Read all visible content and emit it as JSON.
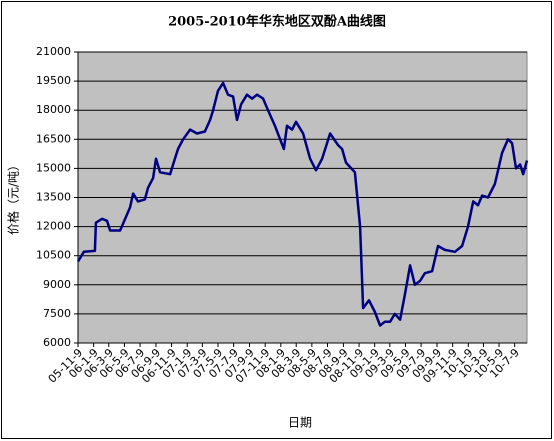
{
  "chart_data": {
    "type": "line",
    "title": "2005-2010年华东地区双酚A曲线图",
    "x_label": "日期",
    "y_label": "价格（元/吨）",
    "x": [
      "05-11-9",
      "05-12-2",
      "06-1-14",
      "06-1-18",
      "06-2-11",
      "06-3-2",
      "06-3-14",
      "06-4-22",
      "06-5-15",
      "06-5-31",
      "06-6-12",
      "06-7-1",
      "06-7-28",
      "06-8-9",
      "06-8-29",
      "06-9-9",
      "06-9-25",
      "06-11-3",
      "06-11-15",
      "06-12-4",
      "06-12-24",
      "07-1-20",
      "07-2-16",
      "07-3-19",
      "07-4-8",
      "07-4-20",
      "07-5-9",
      "07-5-29",
      "07-6-17",
      "07-7-7",
      "07-7-22",
      "07-8-7",
      "07-8-30",
      "07-9-19",
      "07-10-8",
      "07-11-1",
      "07-11-20",
      "07-12-17",
      "08-1-6",
      "08-1-21",
      "08-2-2",
      "08-2-22",
      "08-3-8",
      "08-4-5",
      "08-5-2",
      "08-5-25",
      "08-6-18",
      "08-7-19",
      "08-8-19",
      "08-9-4",
      "08-9-19",
      "08-10-24",
      "08-11-13",
      "08-11-25",
      "08-12-18",
      "09-1-10",
      "09-1-30",
      "09-2-18",
      "09-3-10",
      "09-3-29",
      "09-4-18",
      "09-5-7",
      "09-5-27",
      "09-6-15",
      "09-7-5",
      "09-7-24",
      "09-8-21",
      "09-9-13",
      "09-10-10",
      "09-11-18",
      "09-12-16",
      "10-1-8",
      "10-1-28",
      "10-2-16",
      "10-3-4",
      "10-3-27",
      "10-4-23",
      "10-5-21",
      "10-6-13",
      "10-6-29",
      "10-7-14",
      "10-7-30",
      "10-8-11",
      "10-8-26"
    ],
    "series": [
      {
        "color": "#000080",
        "values": [
          10200,
          10700,
          10750,
          12200,
          12400,
          12300,
          11800,
          11800,
          12500,
          13000,
          13700,
          13300,
          13400,
          14000,
          14500,
          15500,
          14800,
          14700,
          15200,
          16000,
          16500,
          17000,
          16800,
          16900,
          17500,
          18000,
          19000,
          19400,
          18800,
          18700,
          17500,
          18300,
          18800,
          18600,
          18800,
          18600,
          18000,
          17200,
          16500,
          16000,
          17200,
          17000,
          17400,
          16800,
          15500,
          14900,
          15500,
          16800,
          16200,
          16000,
          15300,
          14800,
          12000,
          7800,
          8200,
          7600,
          6900,
          7100,
          7100,
          7500,
          7200,
          8500,
          10000,
          9000,
          9200,
          9600,
          9700,
          11000,
          10800,
          10700,
          11000,
          12000,
          13300,
          13100,
          13600,
          13500,
          14200,
          15800,
          16500,
          16300,
          15000,
          15200,
          14700,
          15400
        ]
      }
    ],
    "xlim": [
      "05-11-9",
      "10-8-26"
    ],
    "xticks": [
      "05-11-9",
      "06-1-9",
      "06-3-9",
      "06-5-9",
      "06-7-9",
      "06-9-9",
      "06-11-9",
      "07-1-9",
      "07-3-9",
      "07-5-9",
      "07-7-9",
      "07-9-9",
      "07-11-9",
      "08-1-9",
      "08-3-9",
      "08-5-9",
      "08-7-9",
      "08-9-9",
      "08-11-9",
      "09-1-9",
      "09-3-9",
      "09-5-9",
      "09-7-9",
      "09-9-9",
      "09-11-9",
      "10-1-9",
      "10-3-9",
      "10-5-9",
      "10-7-9"
    ],
    "ylim": [
      6000,
      21000
    ],
    "yticks": [
      6000,
      7500,
      9000,
      10500,
      12000,
      13500,
      15000,
      16500,
      18000,
      19500,
      21000
    ],
    "grid": true,
    "plot_background": "#c0c0c0"
  }
}
